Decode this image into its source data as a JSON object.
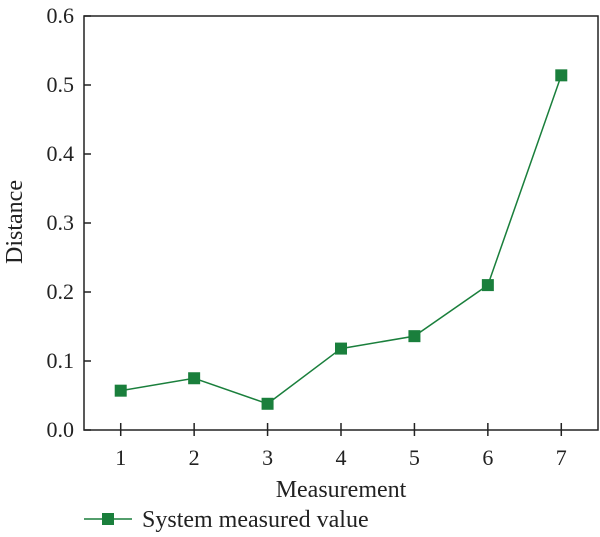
{
  "chart_data": {
    "type": "line",
    "x": [
      1,
      2,
      3,
      4,
      5,
      6,
      7
    ],
    "series": [
      {
        "name": "System measured value",
        "values": [
          0.057,
          0.075,
          0.038,
          0.118,
          0.136,
          0.21,
          0.514
        ],
        "color": "#1a7f3c",
        "marker": "square"
      }
    ],
    "title": "",
    "xlabel": "Measurement",
    "ylabel": "Distance",
    "xlim": [
      0.5,
      7.5
    ],
    "ylim": [
      0.0,
      0.6
    ],
    "xticks": [
      1,
      2,
      3,
      4,
      5,
      6,
      7
    ],
    "xtick_labels": [
      "1",
      "2",
      "3",
      "4",
      "5",
      "6",
      "7"
    ],
    "yticks": [
      0.0,
      0.1,
      0.2,
      0.3,
      0.4,
      0.5,
      0.6
    ],
    "ytick_labels": [
      "0.0",
      "0.1",
      "0.2",
      "0.3",
      "0.4",
      "0.5",
      "0.6"
    ],
    "grid": false,
    "legend_position": "bottom-left"
  }
}
